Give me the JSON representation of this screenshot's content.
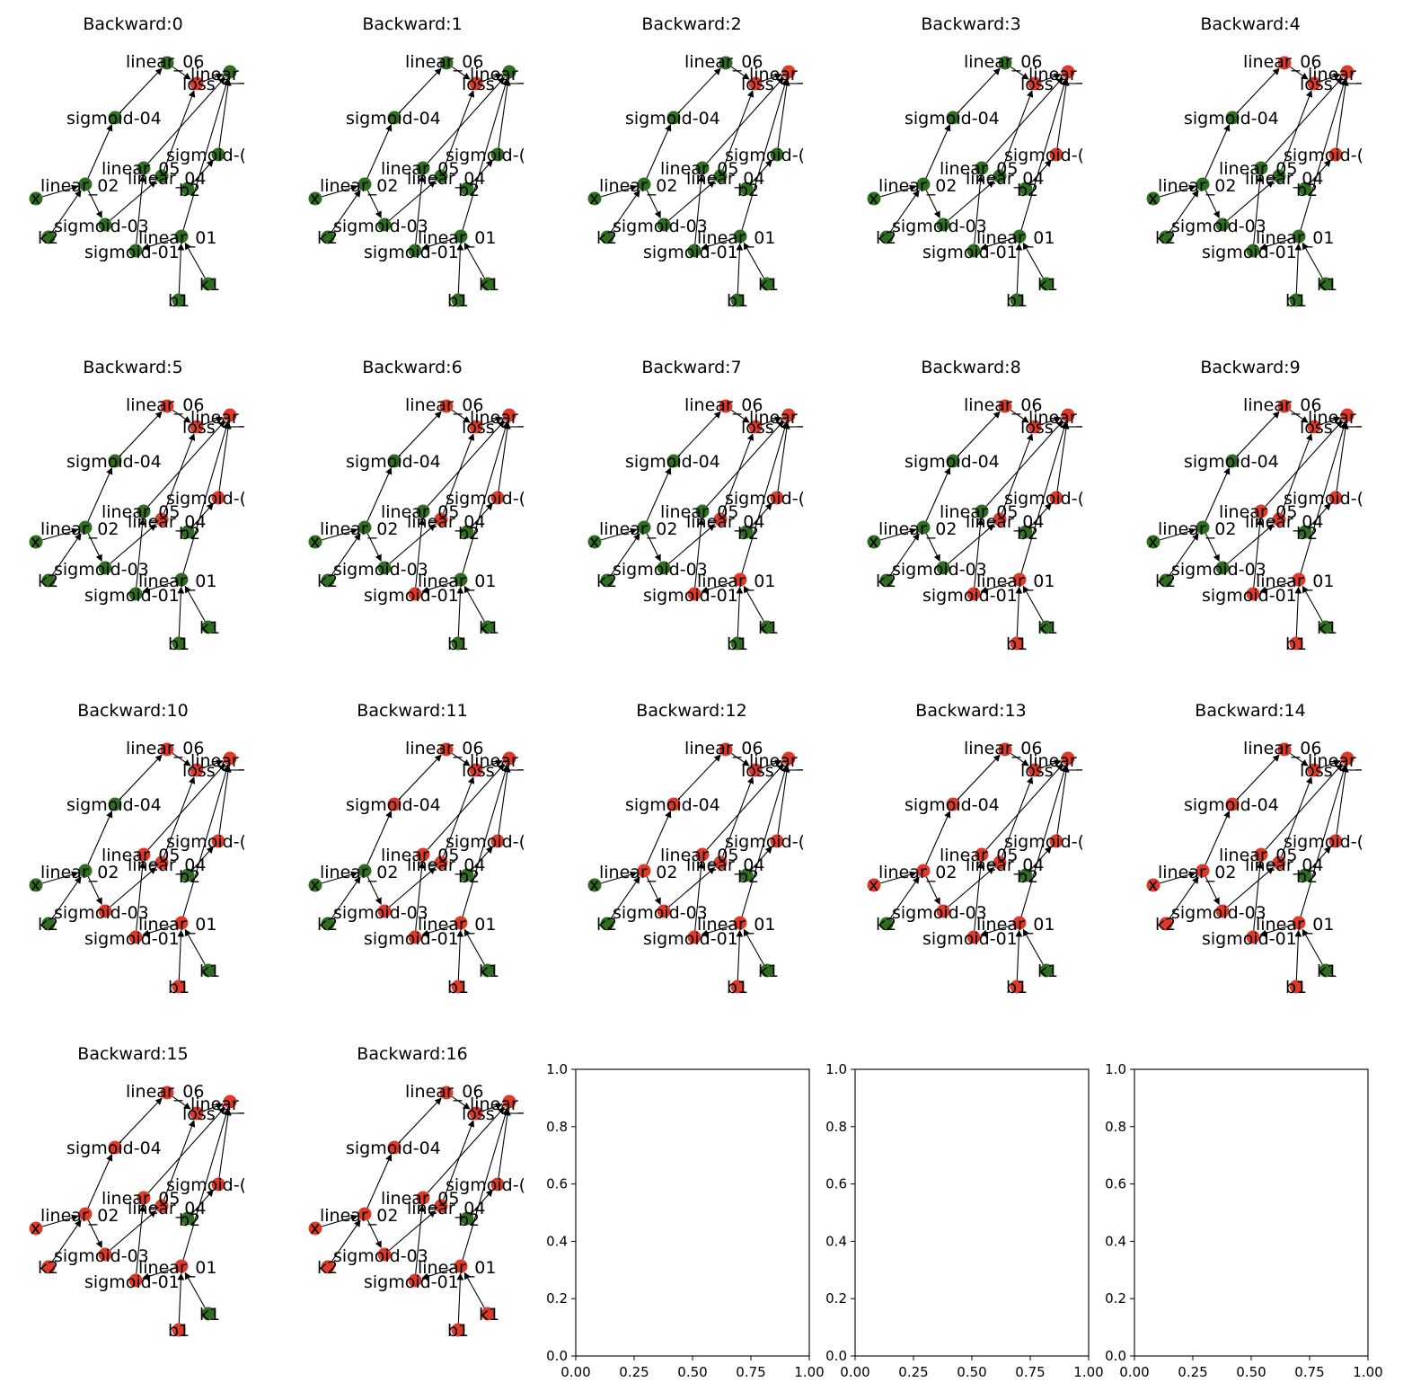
{
  "colors": {
    "visited": "#dd3a2a",
    "unvisited": "#2f6e21",
    "edge": "#000000"
  },
  "graph": {
    "nodes": [
      {
        "id": "linear_06",
        "label": "linear_06"
      },
      {
        "id": "linear_07",
        "label": "linear_("
      },
      {
        "id": "loss",
        "label": "loss"
      },
      {
        "id": "sigmoid-04",
        "label": "sigmoid-04"
      },
      {
        "id": "sigmoid-06",
        "label": "sigmoid-("
      },
      {
        "id": "linear_05",
        "label": "linear_05"
      },
      {
        "id": "linear_04",
        "label": "linear_04"
      },
      {
        "id": "b2",
        "label": "b2"
      },
      {
        "id": "linear_02",
        "label": "linear_02"
      },
      {
        "id": "x",
        "label": "x"
      },
      {
        "id": "sigmoid-03",
        "label": "sigmoid-03"
      },
      {
        "id": "k2",
        "label": "k2"
      },
      {
        "id": "linear_01",
        "label": "linear_01"
      },
      {
        "id": "sigmoid-01",
        "label": "sigmoid-01"
      },
      {
        "id": "k1",
        "label": "k1"
      },
      {
        "id": "b1",
        "label": "b1"
      }
    ],
    "edges": [
      [
        "x",
        "linear_02"
      ],
      [
        "k2",
        "linear_02"
      ],
      [
        "linear_02",
        "sigmoid-04"
      ],
      [
        "linear_02",
        "sigmoid-03"
      ],
      [
        "sigmoid-04",
        "linear_06"
      ],
      [
        "linear_06",
        "loss"
      ],
      [
        "loss",
        "linear_07"
      ],
      [
        "sigmoid-01",
        "linear_05"
      ],
      [
        "linear_05",
        "linear_07"
      ],
      [
        "sigmoid-03",
        "linear_04"
      ],
      [
        "linear_04",
        "loss"
      ],
      [
        "b2",
        "sigmoid-06"
      ],
      [
        "sigmoid-06",
        "linear_07"
      ],
      [
        "linear_01",
        "linear_07"
      ],
      [
        "b1",
        "linear_01"
      ],
      [
        "k1",
        "linear_01"
      ],
      [
        "linear_01",
        "sigmoid-01"
      ]
    ]
  },
  "frames": [
    {
      "title": "Backward:0",
      "visited": [
        "loss"
      ]
    },
    {
      "title": "Backward:1",
      "visited": [
        "loss"
      ]
    },
    {
      "title": "Backward:2",
      "visited": [
        "loss",
        "linear_07"
      ]
    },
    {
      "title": "Backward:3",
      "visited": [
        "loss",
        "linear_07",
        "sigmoid-06"
      ]
    },
    {
      "title": "Backward:4",
      "visited": [
        "loss",
        "linear_07",
        "sigmoid-06",
        "linear_06"
      ]
    },
    {
      "title": "Backward:5",
      "visited": [
        "loss",
        "linear_07",
        "sigmoid-06",
        "linear_06",
        "linear_04"
      ]
    },
    {
      "title": "Backward:6",
      "visited": [
        "loss",
        "linear_07",
        "sigmoid-06",
        "linear_06",
        "linear_04",
        "sigmoid-01"
      ]
    },
    {
      "title": "Backward:7",
      "visited": [
        "loss",
        "linear_07",
        "sigmoid-06",
        "linear_06",
        "linear_04",
        "sigmoid-01",
        "linear_01"
      ]
    },
    {
      "title": "Backward:8",
      "visited": [
        "loss",
        "linear_07",
        "sigmoid-06",
        "linear_06",
        "linear_04",
        "sigmoid-01",
        "linear_01",
        "b1"
      ]
    },
    {
      "title": "Backward:9",
      "visited": [
        "loss",
        "linear_07",
        "sigmoid-06",
        "linear_06",
        "linear_04",
        "sigmoid-01",
        "linear_01",
        "b1",
        "linear_05"
      ]
    },
    {
      "title": "Backward:10",
      "visited": [
        "loss",
        "linear_07",
        "sigmoid-06",
        "linear_06",
        "linear_04",
        "sigmoid-01",
        "linear_01",
        "b1",
        "linear_05",
        "sigmoid-03"
      ]
    },
    {
      "title": "Backward:11",
      "visited": [
        "loss",
        "linear_07",
        "sigmoid-06",
        "linear_06",
        "linear_04",
        "sigmoid-01",
        "linear_01",
        "b1",
        "linear_05",
        "sigmoid-03",
        "sigmoid-04"
      ]
    },
    {
      "title": "Backward:12",
      "visited": [
        "loss",
        "linear_07",
        "sigmoid-06",
        "linear_06",
        "linear_04",
        "sigmoid-01",
        "linear_01",
        "b1",
        "linear_05",
        "sigmoid-03",
        "sigmoid-04",
        "linear_02"
      ]
    },
    {
      "title": "Backward:13",
      "visited": [
        "loss",
        "linear_07",
        "sigmoid-06",
        "linear_06",
        "linear_04",
        "sigmoid-01",
        "linear_01",
        "b1",
        "linear_05",
        "sigmoid-03",
        "sigmoid-04",
        "linear_02",
        "x"
      ]
    },
    {
      "title": "Backward:14",
      "visited": [
        "loss",
        "linear_07",
        "sigmoid-06",
        "linear_06",
        "linear_04",
        "sigmoid-01",
        "linear_01",
        "b1",
        "linear_05",
        "sigmoid-03",
        "sigmoid-04",
        "linear_02",
        "x",
        "k2"
      ]
    },
    {
      "title": "Backward:15",
      "visited": [
        "loss",
        "linear_07",
        "sigmoid-06",
        "linear_06",
        "linear_04",
        "sigmoid-01",
        "linear_01",
        "b1",
        "linear_05",
        "sigmoid-03",
        "sigmoid-04",
        "linear_02",
        "x",
        "k2"
      ]
    },
    {
      "title": "Backward:16",
      "visited": [
        "loss",
        "linear_07",
        "sigmoid-06",
        "linear_06",
        "linear_04",
        "sigmoid-01",
        "linear_01",
        "b1",
        "linear_05",
        "sigmoid-03",
        "sigmoid-04",
        "linear_02",
        "x",
        "k2",
        "k1"
      ]
    }
  ],
  "empty_axes": {
    "count": 3,
    "xticks": [
      "0.00",
      "0.25",
      "0.50",
      "0.75",
      "1.00"
    ],
    "yticks": [
      "0.0",
      "0.2",
      "0.4",
      "0.6",
      "0.8",
      "1.0"
    ]
  }
}
